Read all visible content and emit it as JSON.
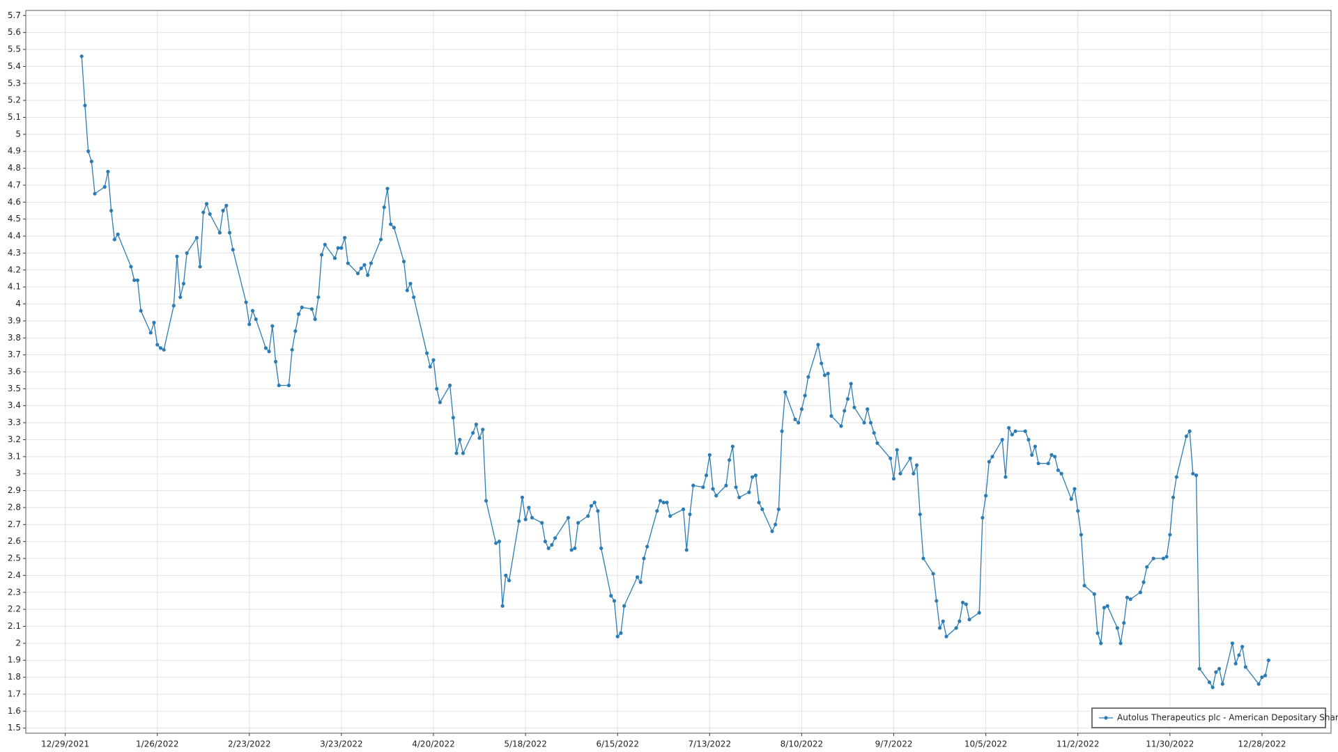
{
  "chart_data": {
    "type": "line",
    "x": [
      "2022-01-03",
      "2022-01-04",
      "2022-01-05",
      "2022-01-06",
      "2022-01-07",
      "2022-01-10",
      "2022-01-11",
      "2022-01-12",
      "2022-01-13",
      "2022-01-14",
      "2022-01-18",
      "2022-01-19",
      "2022-01-20",
      "2022-01-21",
      "2022-01-24",
      "2022-01-25",
      "2022-01-26",
      "2022-01-27",
      "2022-01-28",
      "2022-01-31",
      "2022-02-01",
      "2022-02-02",
      "2022-02-03",
      "2022-02-04",
      "2022-02-07",
      "2022-02-08",
      "2022-02-09",
      "2022-02-10",
      "2022-02-11",
      "2022-02-14",
      "2022-02-15",
      "2022-02-16",
      "2022-02-17",
      "2022-02-18",
      "2022-02-22",
      "2022-02-23",
      "2022-02-24",
      "2022-02-25",
      "2022-02-28",
      "2022-03-01",
      "2022-03-02",
      "2022-03-03",
      "2022-03-04",
      "2022-03-07",
      "2022-03-08",
      "2022-03-09",
      "2022-03-10",
      "2022-03-11",
      "2022-03-14",
      "2022-03-15",
      "2022-03-16",
      "2022-03-17",
      "2022-03-18",
      "2022-03-21",
      "2022-03-22",
      "2022-03-23",
      "2022-03-24",
      "2022-03-25",
      "2022-03-28",
      "2022-03-29",
      "2022-03-30",
      "2022-03-31",
      "2022-04-01",
      "2022-04-04",
      "2022-04-05",
      "2022-04-06",
      "2022-04-07",
      "2022-04-08",
      "2022-04-11",
      "2022-04-12",
      "2022-04-13",
      "2022-04-14",
      "2022-04-18",
      "2022-04-19",
      "2022-04-20",
      "2022-04-21",
      "2022-04-22",
      "2022-04-25",
      "2022-04-26",
      "2022-04-27",
      "2022-04-28",
      "2022-04-29",
      "2022-05-02",
      "2022-05-03",
      "2022-05-04",
      "2022-05-05",
      "2022-05-06",
      "2022-05-09",
      "2022-05-10",
      "2022-05-11",
      "2022-05-12",
      "2022-05-13",
      "2022-05-16",
      "2022-05-17",
      "2022-05-18",
      "2022-05-19",
      "2022-05-20",
      "2022-05-23",
      "2022-05-24",
      "2022-05-25",
      "2022-05-26",
      "2022-05-27",
      "2022-05-31",
      "2022-06-01",
      "2022-06-02",
      "2022-06-03",
      "2022-06-06",
      "2022-06-07",
      "2022-06-08",
      "2022-06-09",
      "2022-06-10",
      "2022-06-13",
      "2022-06-14",
      "2022-06-15",
      "2022-06-16",
      "2022-06-17",
      "2022-06-21",
      "2022-06-22",
      "2022-06-23",
      "2022-06-24",
      "2022-06-27",
      "2022-06-28",
      "2022-06-29",
      "2022-06-30",
      "2022-07-01",
      "2022-07-05",
      "2022-07-06",
      "2022-07-07",
      "2022-07-08",
      "2022-07-11",
      "2022-07-12",
      "2022-07-13",
      "2022-07-14",
      "2022-07-15",
      "2022-07-18",
      "2022-07-19",
      "2022-07-20",
      "2022-07-21",
      "2022-07-22",
      "2022-07-25",
      "2022-07-26",
      "2022-07-27",
      "2022-07-28",
      "2022-07-29",
      "2022-08-01",
      "2022-08-02",
      "2022-08-03",
      "2022-08-04",
      "2022-08-05",
      "2022-08-08",
      "2022-08-09",
      "2022-08-10",
      "2022-08-11",
      "2022-08-12",
      "2022-08-15",
      "2022-08-16",
      "2022-08-17",
      "2022-08-18",
      "2022-08-19",
      "2022-08-22",
      "2022-08-23",
      "2022-08-24",
      "2022-08-25",
      "2022-08-26",
      "2022-08-29",
      "2022-08-30",
      "2022-08-31",
      "2022-09-01",
      "2022-09-02",
      "2022-09-06",
      "2022-09-07",
      "2022-09-08",
      "2022-09-09",
      "2022-09-12",
      "2022-09-13",
      "2022-09-14",
      "2022-09-15",
      "2022-09-16",
      "2022-09-19",
      "2022-09-20",
      "2022-09-21",
      "2022-09-22",
      "2022-09-23",
      "2022-09-26",
      "2022-09-27",
      "2022-09-28",
      "2022-09-29",
      "2022-09-30",
      "2022-10-03",
      "2022-10-04",
      "2022-10-05",
      "2022-10-06",
      "2022-10-07",
      "2022-10-10",
      "2022-10-11",
      "2022-10-12",
      "2022-10-13",
      "2022-10-14",
      "2022-10-17",
      "2022-10-18",
      "2022-10-19",
      "2022-10-20",
      "2022-10-21",
      "2022-10-24",
      "2022-10-25",
      "2022-10-26",
      "2022-10-27",
      "2022-10-28",
      "2022-10-31",
      "2022-11-01",
      "2022-11-02",
      "2022-11-03",
      "2022-11-04",
      "2022-11-07",
      "2022-11-08",
      "2022-11-09",
      "2022-11-10",
      "2022-11-11",
      "2022-11-14",
      "2022-11-15",
      "2022-11-16",
      "2022-11-17",
      "2022-11-18",
      "2022-11-21",
      "2022-11-22",
      "2022-11-23",
      "2022-11-25",
      "2022-11-28",
      "2022-11-29",
      "2022-11-30",
      "2022-12-01",
      "2022-12-02",
      "2022-12-05",
      "2022-12-06",
      "2022-12-07",
      "2022-12-08",
      "2022-12-09",
      "2022-12-12",
      "2022-12-13",
      "2022-12-14",
      "2022-12-15",
      "2022-12-16",
      "2022-12-19",
      "2022-12-20",
      "2022-12-21",
      "2022-12-22",
      "2022-12-23",
      "2022-12-27",
      "2022-12-28",
      "2022-12-29",
      "2022-12-30"
    ],
    "series": [
      {
        "name": "Autolus Therapeutics plc - American Depositary Shares",
        "color": "#2b7bb4",
        "values": [
          5.46,
          5.17,
          4.9,
          4.84,
          4.65,
          4.69,
          4.78,
          4.55,
          4.38,
          4.41,
          4.22,
          4.14,
          4.14,
          3.96,
          3.83,
          3.89,
          3.76,
          3.74,
          3.73,
          3.99,
          4.28,
          4.04,
          4.12,
          4.3,
          4.39,
          4.22,
          4.54,
          4.59,
          4.53,
          4.42,
          4.55,
          4.58,
          4.42,
          4.32,
          4.01,
          3.88,
          3.96,
          3.91,
          3.74,
          3.72,
          3.87,
          3.66,
          3.52,
          3.52,
          3.73,
          3.84,
          3.94,
          3.98,
          3.97,
          3.91,
          4.04,
          4.29,
          4.35,
          4.27,
          4.33,
          4.33,
          4.39,
          4.24,
          4.18,
          4.21,
          4.23,
          4.17,
          4.24,
          4.38,
          4.57,
          4.68,
          4.47,
          4.45,
          4.25,
          4.08,
          4.12,
          4.04,
          3.71,
          3.63,
          3.67,
          3.5,
          3.42,
          3.52,
          3.33,
          3.12,
          3.2,
          3.12,
          3.24,
          3.29,
          3.21,
          3.26,
          2.84,
          2.59,
          2.6,
          2.22,
          2.4,
          2.37,
          2.72,
          2.86,
          2.73,
          2.8,
          2.74,
          2.71,
          2.6,
          2.56,
          2.58,
          2.62,
          2.74,
          2.55,
          2.56,
          2.71,
          2.75,
          2.81,
          2.83,
          2.78,
          2.56,
          2.28,
          2.25,
          2.04,
          2.06,
          2.22,
          2.39,
          2.36,
          2.5,
          2.57,
          2.78,
          2.84,
          2.83,
          2.83,
          2.75,
          2.79,
          2.55,
          2.76,
          2.93,
          2.92,
          2.99,
          3.11,
          2.91,
          2.87,
          2.93,
          3.08,
          3.16,
          2.92,
          2.86,
          2.89,
          2.98,
          2.99,
          2.83,
          2.79,
          2.66,
          2.7,
          2.79,
          3.25,
          3.48,
          3.32,
          3.3,
          3.38,
          3.46,
          3.57,
          3.76,
          3.65,
          3.58,
          3.59,
          3.34,
          3.28,
          3.37,
          3.44,
          3.53,
          3.39,
          3.3,
          3.38,
          3.3,
          3.24,
          3.18,
          3.09,
          2.97,
          3.14,
          3.0,
          3.09,
          3.0,
          3.05,
          2.76,
          2.5,
          2.41,
          2.25,
          2.09,
          2.13,
          2.04,
          2.09,
          2.13,
          2.24,
          2.23,
          2.14,
          2.18,
          2.74,
          2.87,
          3.07,
          3.1,
          3.2,
          2.98,
          3.27,
          3.23,
          3.25,
          3.25,
          3.2,
          3.11,
          3.16,
          3.06,
          3.06,
          3.11,
          3.1,
          3.02,
          3.0,
          2.85,
          2.91,
          2.78,
          2.64,
          2.34,
          2.29,
          2.06,
          2.0,
          2.21,
          2.22,
          2.09,
          2.0,
          2.12,
          2.27,
          2.26,
          2.3,
          2.36,
          2.45,
          2.5,
          2.5,
          2.51,
          2.64,
          2.86,
          2.98,
          3.22,
          3.25,
          3.0,
          2.99,
          1.85,
          1.77,
          1.74,
          1.83,
          1.85,
          1.76,
          2.0,
          1.88,
          1.93,
          1.98,
          1.86,
          1.76,
          1.8,
          1.81,
          1.9
        ]
      }
    ],
    "xlim": [
      "2021-12-17",
      "2023-01-18"
    ],
    "xticks": [
      {
        "value": "2021-12-29",
        "label": "12/29/2021"
      },
      {
        "value": "2022-01-26",
        "label": "1/26/2022"
      },
      {
        "value": "2022-02-23",
        "label": "2/23/2022"
      },
      {
        "value": "2022-03-23",
        "label": "3/23/2022"
      },
      {
        "value": "2022-04-20",
        "label": "4/20/2022"
      },
      {
        "value": "2022-05-18",
        "label": "5/18/2022"
      },
      {
        "value": "2022-06-15",
        "label": "6/15/2022"
      },
      {
        "value": "2022-07-13",
        "label": "7/13/2022"
      },
      {
        "value": "2022-08-10",
        "label": "8/10/2022"
      },
      {
        "value": "2022-09-07",
        "label": "9/7/2022"
      },
      {
        "value": "2022-10-05",
        "label": "10/5/2022"
      },
      {
        "value": "2022-11-02",
        "label": "11/2/2022"
      },
      {
        "value": "2022-11-30",
        "label": "11/30/2022"
      },
      {
        "value": "2022-12-28",
        "label": "12/28/2022"
      }
    ],
    "ylim": [
      1.47,
      5.73
    ],
    "yticks": [
      1.5,
      1.6,
      1.7,
      1.8,
      1.9,
      2,
      2.1,
      2.2,
      2.3,
      2.4,
      2.5,
      2.6,
      2.7,
      2.8,
      2.9,
      3,
      3.1,
      3.2,
      3.3,
      3.4,
      3.5,
      3.6,
      3.7,
      3.8,
      3.9,
      4,
      4.1,
      4.2,
      4.3,
      4.4,
      4.5,
      4.6,
      4.7,
      4.8,
      4.9,
      5,
      5.1,
      5.2,
      5.3,
      5.4,
      5.5,
      5.6,
      5.7
    ],
    "grid": true,
    "legend": "lower right"
  }
}
